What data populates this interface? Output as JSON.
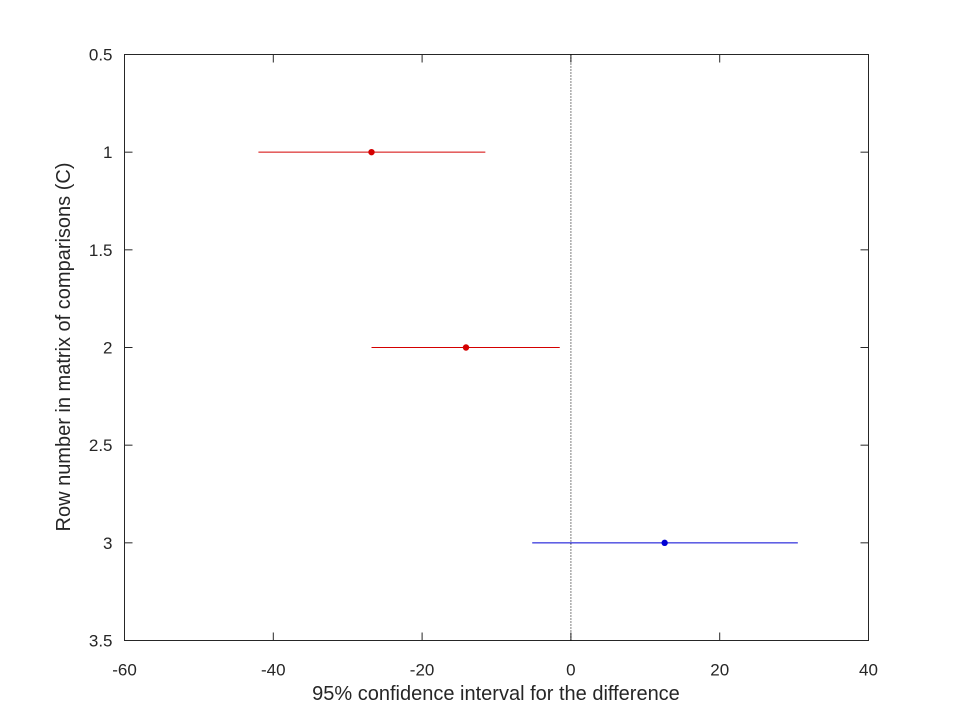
{
  "chart_data": {
    "type": "scatter",
    "xlabel": "95% confidence interval for the difference",
    "ylabel": "Row number in matrix of comparisons (C)",
    "xlim": [
      -60,
      40
    ],
    "ylim": [
      3.5,
      0.5
    ],
    "y_reversed": true,
    "grid": false,
    "x_ticks": [
      "-60",
      "-40",
      "-20",
      "0",
      "20",
      "40"
    ],
    "y_ticks": [
      "0.5",
      "1",
      "1.5",
      "2",
      "2.5",
      "3",
      "3.5"
    ],
    "reference_line": {
      "x": 0,
      "style": "dotted"
    },
    "intervals": [
      {
        "row": 1,
        "lower": -42,
        "estimate": -26.8,
        "upper": -11.5,
        "color": "#d40000"
      },
      {
        "row": 2,
        "lower": -26.8,
        "estimate": -14.1,
        "upper": -1.5,
        "color": "#d40000"
      },
      {
        "row": 3,
        "lower": -5.2,
        "estimate": 12.6,
        "upper": 30.5,
        "color": "#0000d4"
      }
    ]
  }
}
